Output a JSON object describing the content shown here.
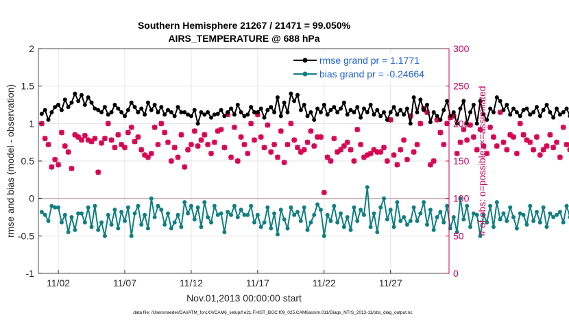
{
  "chart_data": {
    "type": "line",
    "title": "Southern Hemisphere 21267 / 21471 = 99.050%",
    "subtitle": "AIRS_TEMPERATURE @ 688 hPa",
    "xlabel": "Nov.01,2013 00:00:00 start",
    "ylabel_left": "rmse and bias (model - observation)",
    "ylabel_right": "# of obs: o=possible; ×=assimilated",
    "footer": "data file: /Users/raeder/DAI/ATM_forcXX/CAM6_setup/f.e21.FHIST_BGC.f09_025.CAM6assim.011/Diags_NTrS_2013-11/obs_diag_output.nc",
    "xlim": [
      0.5,
      31.4
    ],
    "ylim_left": [
      -1,
      2
    ],
    "ylim_right": [
      0,
      300
    ],
    "yticks_left": [
      -1,
      -0.5,
      0,
      0.5,
      1,
      1.5,
      2
    ],
    "ytick_labels_left": [
      "-1",
      "-0.5",
      "0",
      "0.5",
      "1",
      "1.5",
      "2"
    ],
    "yticks_right": [
      0,
      50,
      100,
      150,
      200,
      250,
      300
    ],
    "ytick_labels_right": [
      "0",
      "50",
      "100",
      "150",
      "200",
      "250",
      "300"
    ],
    "xticks": [
      2,
      7,
      12,
      17,
      22,
      27
    ],
    "xtick_labels": [
      "11/02",
      "11/07",
      "11/12",
      "11/17",
      "11/22",
      "11/27"
    ],
    "grid": true,
    "legend_position": "top-right",
    "colors": {
      "rmse": "#000000",
      "bias": "#0f7f80",
      "obs": "#d6004f",
      "zero_line": "#c8aeb2",
      "right_axis": "#c8005a"
    },
    "series": [
      {
        "name": "rmse grand pr = 1.1771",
        "axis": "left",
        "x_start": 0.75,
        "x_step": 0.25,
        "values": [
          1.13,
          1.18,
          1.05,
          1.15,
          1.22,
          1.25,
          1.18,
          1.32,
          1.22,
          1.28,
          1.4,
          1.3,
          1.38,
          1.25,
          1.35,
          1.28,
          1.2,
          1.18,
          1.15,
          1.22,
          1.12,
          1.15,
          1.25,
          1.2,
          1.15,
          1.1,
          1.18,
          1.28,
          1.22,
          1.15,
          1.2,
          1.12,
          1.28,
          1.18,
          1.25,
          1.15,
          1.22,
          1.12,
          1.18,
          1.15,
          1.1,
          1.22,
          1.15,
          1.15,
          1.12,
          1.1,
          1.18,
          1.0,
          1.15,
          1.12,
          1.15,
          1.08,
          1.12,
          1.13,
          1.18,
          1.1,
          1.15,
          1.2,
          1.12,
          1.25,
          1.15,
          1.1,
          1.12,
          1.22,
          1.15,
          1.15,
          1.2,
          1.08,
          1.18,
          1.22,
          1.15,
          1.35,
          1.1,
          1.28,
          1.15,
          1.4,
          1.3,
          1.38,
          1.18,
          1.25,
          1.1,
          1.15,
          1.05,
          1.2,
          1.15,
          1.25,
          1.12,
          1.18,
          1.22,
          1.15,
          1.2,
          1.28,
          1.12,
          1.18,
          1.15,
          1.22,
          1.08,
          1.2,
          1.15,
          1.25,
          1.12,
          1.18,
          1.1,
          1.15,
          1.05,
          1.15,
          1.22,
          1.12,
          1.18,
          1.12,
          1.2,
          1.0,
          1.35,
          1.15,
          1.32,
          1.18,
          1.25,
          1.02,
          1.15,
          1.1,
          1.05,
          1.18,
          1.3,
          1.1,
          1.15,
          1.0,
          1.2,
          1.3,
          1.0,
          1.15,
          1.25,
          1.0,
          1.3,
          1.12,
          1.05,
          1.2,
          1.15,
          1.35,
          1.3,
          1.18,
          1.25,
          1.12,
          1.2,
          1.15,
          1.1,
          1.18,
          1.2,
          1.12,
          1.15,
          1.22,
          1.1,
          1.18,
          1.25,
          1.15,
          1.08,
          1.2,
          1.12,
          1.15,
          1.2,
          1.1,
          1.22,
          1.15,
          1.08,
          1.18,
          1.12,
          1.15,
          1.08,
          1.2,
          1.15,
          1.22,
          1.1,
          1.18,
          1.25,
          1.12,
          1.2,
          1.15,
          1.18,
          1.22,
          1.1,
          1.2,
          1.25,
          1.22,
          1.22,
          1.2,
          1.25,
          1.22,
          1.22,
          1.25,
          1.22,
          1.3,
          1.32,
          1.28,
          1.35,
          1.22,
          1.3,
          1.25,
          1.18,
          1.32,
          1.28,
          1.1,
          1.25,
          1.18,
          1.05,
          1.3,
          1.2,
          1.12,
          1.25,
          1.18,
          1.15,
          1.12
        ]
      },
      {
        "name": "bias grand pr = -0.24664",
        "axis": "left",
        "x_start": 0.75,
        "x_step": 0.25,
        "values": [
          -0.18,
          -0.22,
          -0.3,
          -0.1,
          -0.12,
          -0.12,
          -0.32,
          -0.22,
          -0.45,
          -0.25,
          -0.42,
          -0.2,
          -0.2,
          -0.32,
          -0.12,
          -0.38,
          -0.1,
          -0.42,
          -0.32,
          -0.5,
          -0.22,
          -0.35,
          -0.15,
          -0.4,
          -0.18,
          -0.3,
          -0.12,
          -0.5,
          -0.2,
          -0.1,
          -0.35,
          -0.22,
          -0.4,
          0.0,
          -0.25,
          -0.1,
          -0.15,
          -0.35,
          -0.2,
          -0.4,
          -0.32,
          -0.22,
          -0.38,
          -0.05,
          -0.2,
          -0.1,
          -0.28,
          -0.12,
          -0.38,
          -0.05,
          -0.25,
          -0.32,
          -0.1,
          -0.22,
          -0.2,
          -0.45,
          -0.18,
          -0.22,
          -0.1,
          -0.25,
          -0.15,
          -0.22,
          -0.22,
          -0.1,
          -0.32,
          -0.22,
          -0.38,
          -0.32,
          -0.12,
          -0.4,
          -0.2,
          -0.48,
          -0.15,
          -0.28,
          -0.4,
          -0.12,
          -0.22,
          -0.18,
          -0.3,
          -0.12,
          -0.42,
          -0.32,
          -0.22,
          -0.08,
          -0.15,
          -0.5,
          -0.22,
          -0.3,
          -0.1,
          -0.32,
          -0.2,
          -0.38,
          -0.25,
          -0.42,
          -0.12,
          -0.3,
          -0.15,
          -0.22,
          0.15,
          -0.38,
          -0.2,
          -0.45,
          -0.12,
          0.0,
          -0.28,
          -0.15,
          -0.38,
          -0.05,
          -0.3,
          -0.25,
          -0.35,
          -0.3,
          -0.12,
          -0.3,
          -0.2,
          -0.05,
          -0.35,
          -0.15,
          -0.42,
          -0.25,
          -0.18,
          -0.32,
          -0.1,
          -0.4,
          -0.25,
          -0.45,
          0.0,
          -0.28,
          -0.1,
          -0.38,
          -0.2,
          -0.22,
          -0.5,
          -0.22,
          -0.32,
          -0.1,
          -0.38,
          -0.05,
          -0.28,
          -0.2,
          -0.3,
          -0.12,
          -0.25,
          -0.4,
          -0.2,
          -0.22,
          -0.35,
          -0.1,
          -0.3,
          -0.18,
          -0.32,
          -0.12,
          -0.38,
          -0.2,
          -0.25,
          -0.22,
          -0.18,
          -0.32,
          -0.1,
          -0.25,
          -0.32,
          -0.15,
          -0.22,
          -0.28,
          -0.12,
          -0.25,
          -0.1,
          -0.2,
          -0.3,
          -0.15,
          -0.22,
          -0.35,
          -0.18,
          -0.28,
          -0.1,
          -0.32,
          -0.25,
          -0.35,
          -0.22,
          -0.3,
          -0.18,
          -0.28,
          -0.45,
          -0.48,
          -0.48,
          -0.45,
          -0.35,
          -0.22,
          -0.12,
          -0.2,
          -0.3,
          -0.22,
          -0.1,
          -0.35,
          -0.22,
          -0.28,
          -0.05,
          -0.15,
          -0.28,
          -0.35,
          -0.22,
          -0.18,
          -0.25,
          0.1,
          -0.2,
          -0.35,
          -0.22,
          -0.15,
          -0.25
        ]
      },
      {
        "name": "observations possible",
        "axis": "right",
        "marker": "o",
        "x_start": 0.75,
        "x_step": 0.25,
        "values": [
          200,
          180,
          172,
          142,
          152,
          145,
          188,
          170,
          162,
          140,
          185,
          182,
          178,
          184,
          178,
          176,
          180,
          135,
          174,
          180,
          200,
          178,
          168,
          185,
          172,
          168,
          188,
          195,
          176,
          182,
          165,
          158,
          155,
          160,
          195,
          172,
          200,
          188,
          175,
          150,
          168,
          155,
          185,
          142,
          165,
          172,
          190,
          170,
          178,
          185,
          172,
          160,
          175,
          190,
          192,
          168,
          212,
          155,
          195,
          150,
          182,
          172,
          160,
          200,
          178,
          212,
          182,
          168,
          198,
          162,
          172,
          155,
          190,
          148,
          172,
          200,
          178,
          168,
          162,
          165,
          175,
          190,
          170,
          182,
          182,
          108,
          155,
          150,
          180,
          162,
          165,
          170,
          175,
          165,
          150,
          192,
          172,
          155,
          158,
          160,
          165,
          162,
          162,
          168,
          150,
          205,
          158,
          145,
          165,
          178,
          152,
          210,
          162,
          172,
          200,
          220,
          215,
          145,
          150,
          205,
          188,
          172,
          200,
          208,
          210,
          160,
          175,
          192,
          178,
          198,
          182,
          165,
          192,
          170,
          160,
          195,
          182,
          170,
          215,
          175,
          165,
          185,
          182,
          160,
          200,
          185,
          178,
          175,
          165,
          182,
          158,
          165,
          170,
          185,
          168,
          175,
          155,
          195,
          172,
          165,
          150,
          162,
          168,
          172,
          190,
          175,
          158,
          165,
          178,
          158,
          168,
          175,
          108,
          155,
          150,
          165,
          170,
          160,
          188,
          172,
          182,
          165,
          175,
          155,
          160,
          168,
          150,
          188,
          195,
          172,
          210,
          170,
          200,
          160,
          175,
          192,
          178,
          165,
          182,
          195,
          150,
          215,
          222,
          210,
          175,
          222,
          205,
          168,
          212,
          200,
          190,
          175,
          170,
          160,
          250,
          165,
          178,
          0
        ]
      },
      {
        "name": "observations assimilated",
        "axis": "right",
        "marker": "x",
        "x_start": 0.75,
        "x_step": 0.25,
        "values": [
          200,
          180,
          172,
          142,
          152,
          145,
          188,
          170,
          162,
          140,
          185,
          182,
          178,
          184,
          178,
          176,
          180,
          135,
          174,
          180,
          200,
          178,
          168,
          185,
          172,
          168,
          188,
          195,
          176,
          182,
          165,
          158,
          155,
          160,
          195,
          172,
          200,
          188,
          175,
          150,
          168,
          155,
          185,
          142,
          165,
          172,
          190,
          170,
          178,
          185,
          172,
          160,
          175,
          190,
          192,
          168,
          212,
          155,
          195,
          150,
          182,
          172,
          160,
          200,
          178,
          212,
          182,
          168,
          198,
          162,
          172,
          155,
          190,
          148,
          172,
          200,
          178,
          168,
          162,
          165,
          175,
          190,
          170,
          182,
          182,
          108,
          155,
          150,
          180,
          162,
          165,
          170,
          175,
          165,
          150,
          192,
          172,
          155,
          158,
          160,
          165,
          162,
          162,
          168,
          150,
          205,
          158,
          145,
          165,
          178,
          152,
          210,
          162,
          172,
          200,
          220,
          215,
          145,
          150,
          205,
          188,
          172,
          200,
          208,
          210,
          160,
          175,
          192,
          178,
          198,
          182,
          165,
          192,
          170,
          160,
          195,
          182,
          170,
          215,
          175,
          165,
          185,
          182,
          160,
          200,
          185,
          178,
          175,
          165,
          182,
          158,
          165,
          170,
          185,
          168,
          175,
          155,
          195,
          172,
          165,
          150,
          162,
          168,
          172,
          190,
          175,
          158,
          165,
          178,
          158,
          168,
          175,
          108,
          155,
          150,
          165,
          170,
          160,
          188,
          172,
          182,
          165,
          175,
          155,
          160,
          168,
          150,
          188,
          195,
          172,
          210,
          170,
          200,
          160,
          175,
          192,
          178,
          165,
          182,
          195,
          150,
          215,
          222,
          210,
          175,
          222,
          205,
          168,
          212,
          200,
          190,
          175,
          170,
          160,
          250,
          165,
          178,
          0
        ]
      }
    ]
  }
}
